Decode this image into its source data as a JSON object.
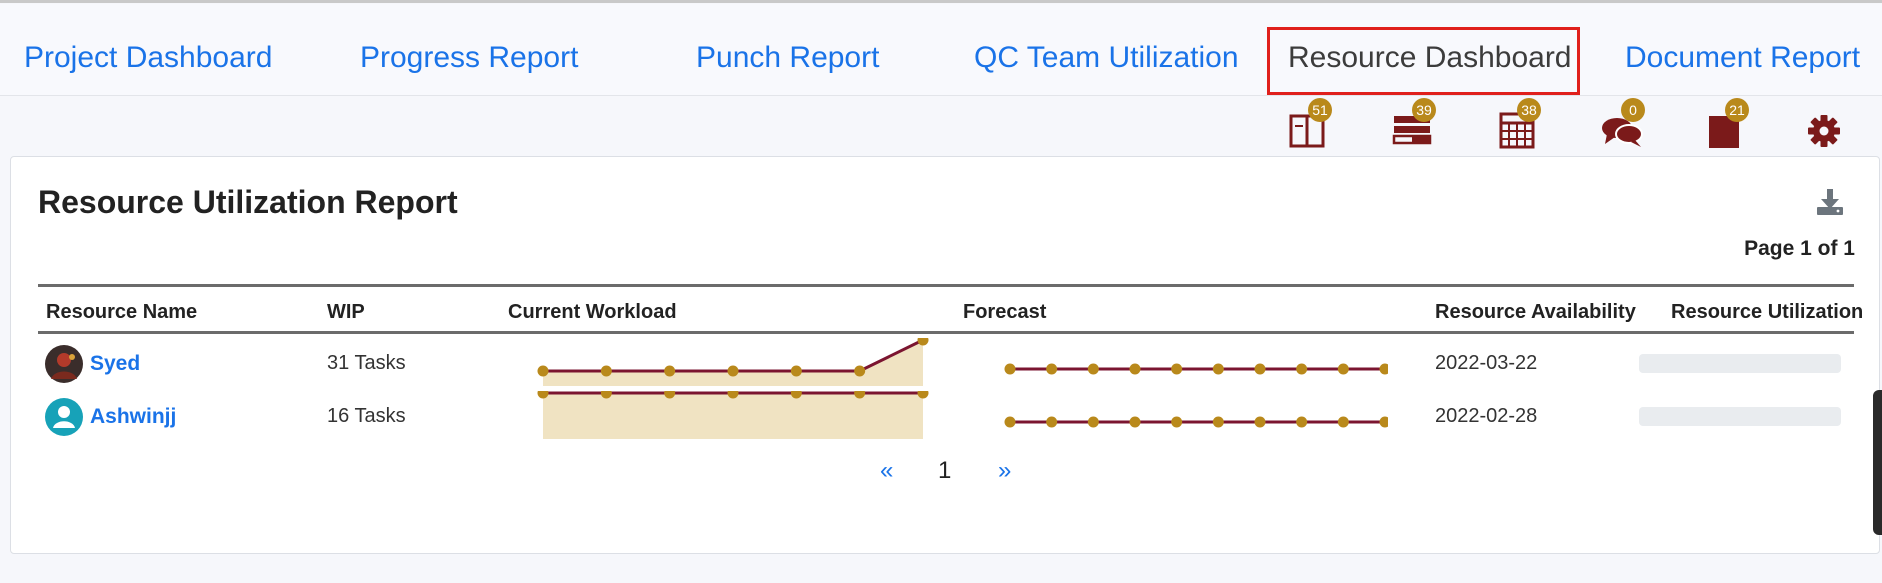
{
  "tabs": [
    {
      "label": "Project Dashboard"
    },
    {
      "label": "Progress Report"
    },
    {
      "label": "Punch Report"
    },
    {
      "label": "QC Team Utilization"
    },
    {
      "label": "Resource Dashboard",
      "active": true
    },
    {
      "label": "Document Report"
    }
  ],
  "toolbar": {
    "icons": [
      {
        "name": "book-icon",
        "count": "51"
      },
      {
        "name": "list-stack-icon",
        "count": "39"
      },
      {
        "name": "calendar-icon",
        "count": "38"
      },
      {
        "name": "chat-bubbles-icon",
        "count": "0"
      },
      {
        "name": "bookmark-icon",
        "count": "21"
      },
      {
        "name": "gear-icon",
        "count": ""
      }
    ],
    "colors": {
      "badge": "#b9891b",
      "icon": "#7b1a1a"
    }
  },
  "report": {
    "title": "Resource Utilization Report",
    "page_info": "Page 1 of 1",
    "columns": [
      "Resource Name",
      "WIP",
      "Current Workload",
      "Forecast",
      "Resource Availability",
      "Resource Utilization"
    ],
    "rows": [
      {
        "name": "Syed",
        "wip": "31 Tasks",
        "workload": [
          0,
          0,
          0,
          0,
          0,
          0,
          1
        ],
        "forecast": [
          0,
          0,
          0,
          0,
          0,
          0,
          0,
          0,
          0,
          0
        ],
        "availability": "2022-03-22",
        "utilization_pct": 0,
        "avatar": "photo"
      },
      {
        "name": "Ashwinjj",
        "wip": "16 Tasks",
        "workload": [
          1,
          1,
          1,
          1,
          1,
          1,
          1
        ],
        "forecast": [
          0,
          0,
          0,
          0,
          0,
          0,
          0,
          0,
          0,
          0
        ],
        "availability": "2022-02-28",
        "utilization_pct": 0,
        "avatar": "placeholder"
      }
    ]
  },
  "pagination": {
    "prev": "«",
    "current": "1",
    "next": "»"
  },
  "colors": {
    "link": "#1a73e8",
    "line": "#7b1530",
    "dot": "#b9891b",
    "fill": "#f0e3c2"
  }
}
